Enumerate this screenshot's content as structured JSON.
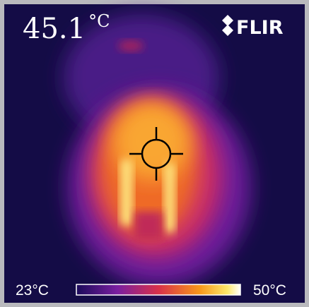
{
  "reading": {
    "value": "45.1",
    "unit": "°C"
  },
  "brand": "FLIR",
  "scale": {
    "min": "23°C",
    "max": "50°C"
  }
}
